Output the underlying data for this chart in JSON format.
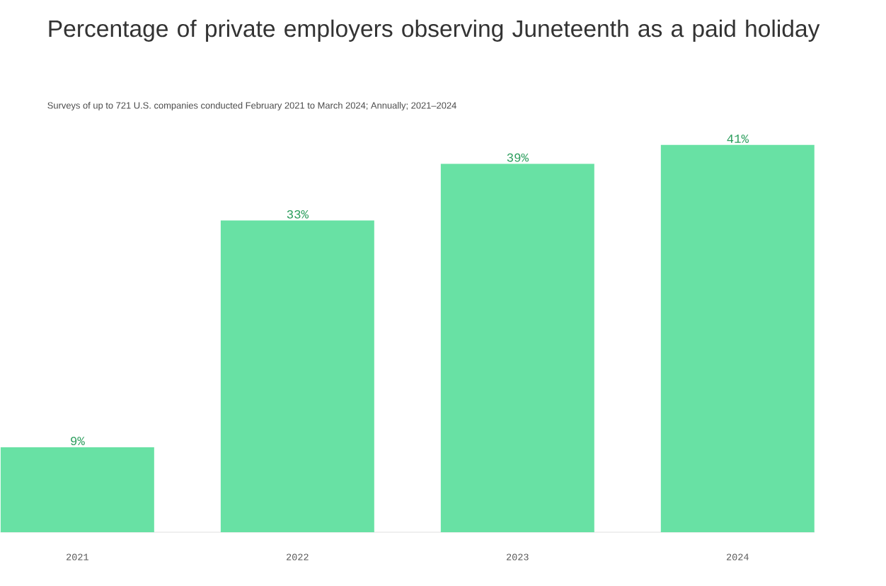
{
  "chart_data": {
    "type": "bar",
    "title": "Percentage of private employers observing Juneteenth as a paid holiday",
    "subtitle": "Surveys of up to 721 U.S. companies conducted February 2021 to March 2024; Annually; 2021–2024",
    "categories": [
      "2021",
      "2022",
      "2023",
      "2024"
    ],
    "values": [
      9,
      33,
      39,
      41
    ],
    "value_labels": [
      "9%",
      "33%",
      "39%",
      "41%"
    ],
    "color": "#68e1a4"
  }
}
